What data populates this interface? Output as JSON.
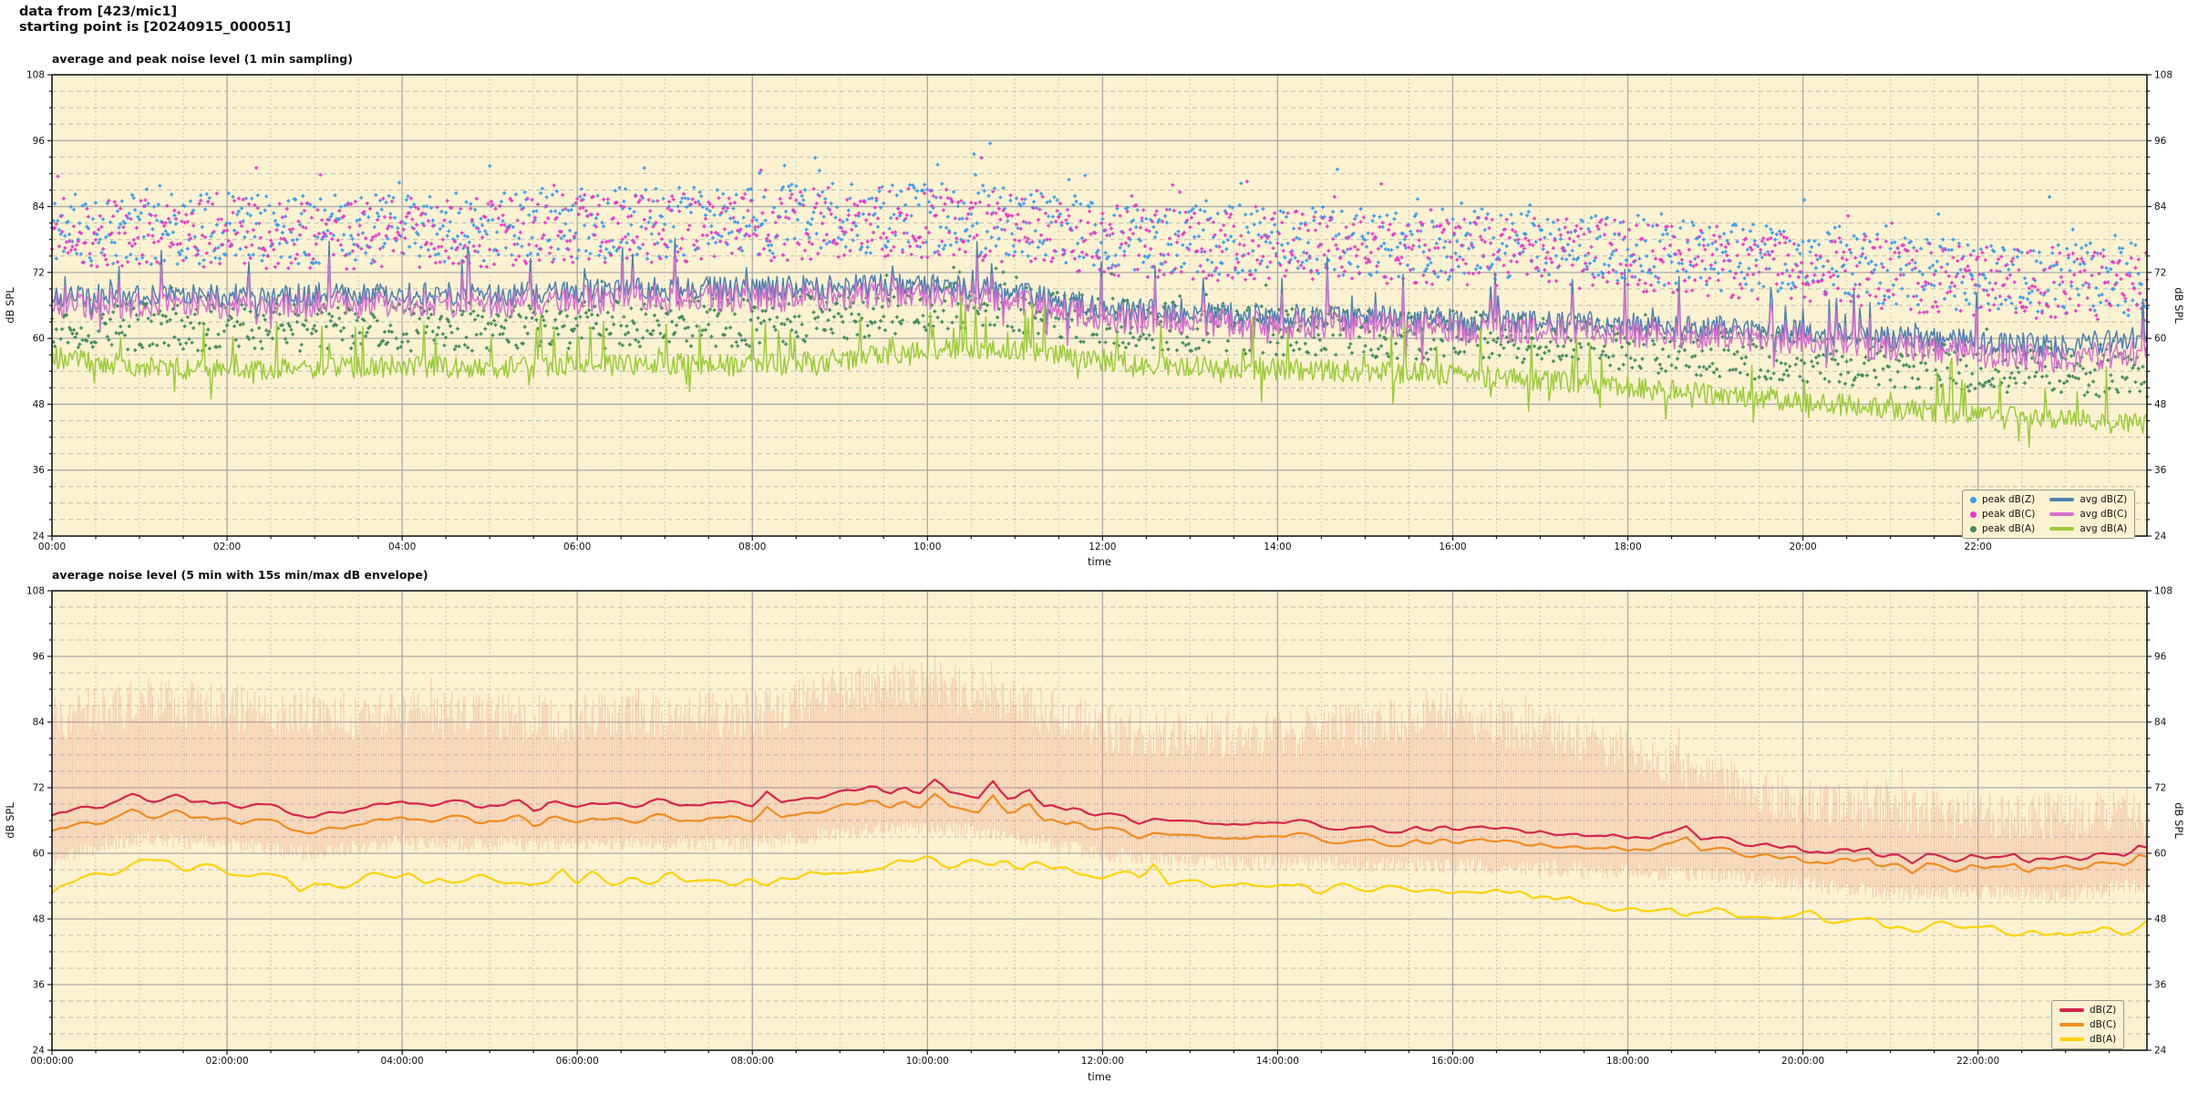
{
  "header": {
    "line1": "data from [423/mic1]",
    "line2": "starting point is [20240915_000051]"
  },
  "chart_data": [
    {
      "type": "line",
      "title": "average and peak noise level (1 min sampling)",
      "xlabel": "time",
      "ylabel": "dB SPL",
      "ylim": [
        24,
        108
      ],
      "yticks": [
        24,
        36,
        48,
        60,
        72,
        84,
        96,
        108
      ],
      "yminor_step": 3,
      "x_hours": 23.93,
      "xtick_every_h": 2,
      "xminor_every_h": 0.5,
      "xtick_labels": [
        "00:00",
        "02:00",
        "04:00",
        "06:00",
        "08:00",
        "10:00",
        "12:00",
        "14:00",
        "16:00",
        "18:00",
        "20:00",
        "22:00"
      ],
      "background": "#FBF2D2",
      "grid": true,
      "legend_position": "lower right",
      "series": [
        {
          "name": "peak dB(Z)",
          "kind": "scatter",
          "color": "#3D9BE9",
          "seed": 11,
          "points_per_hour": 60,
          "spread": 6.5,
          "tail_p": 0.06,
          "tail_amp": 9,
          "hourly_anchor_values": [
            80,
            80,
            80,
            80,
            80,
            80.5,
            81,
            81,
            81.5,
            82,
            82,
            81,
            79,
            78,
            78,
            77.5,
            77,
            76.5,
            76,
            75,
            74,
            72.5,
            71.5,
            71,
            70.5
          ]
        },
        {
          "name": "peak dB(C)",
          "kind": "scatter",
          "color": "#E53BC6",
          "seed": 12,
          "points_per_hour": 60,
          "spread": 6.5,
          "tail_p": 0.05,
          "tail_amp": 8,
          "hourly_anchor_values": [
            79,
            79,
            79,
            79,
            79,
            79.5,
            80,
            80,
            80.5,
            81,
            81,
            80,
            78,
            77,
            77,
            76.5,
            76,
            75.5,
            75,
            74,
            73,
            71.5,
            70.5,
            70,
            69.5
          ]
        },
        {
          "name": "peak dB(A)",
          "kind": "scatter",
          "color": "#41895C",
          "seed": 13,
          "points_per_hour": 60,
          "spread": 4.5,
          "tail_p": 0.05,
          "tail_amp": 6,
          "hourly_anchor_values": [
            63,
            62,
            62,
            62,
            62,
            62,
            62.5,
            63,
            63,
            64,
            66,
            65.5,
            63,
            62,
            61.5,
            61,
            60.5,
            60,
            58.5,
            57.5,
            56.5,
            55.5,
            54.5,
            54,
            53.5
          ]
        },
        {
          "name": "avg dB(Z)",
          "kind": "line",
          "color": "#4E80B0",
          "seed": 21,
          "points_per_hour": 60,
          "amp": 2.2,
          "spike_p": 0.07,
          "spike_amp": 8,
          "width": 1.5,
          "smooth": 0,
          "hourly_anchor_values": [
            67.5,
            68,
            68,
            68,
            68,
            68,
            68.5,
            69,
            69,
            69.5,
            70,
            68.5,
            65.5,
            64.5,
            64.2,
            63.8,
            63.4,
            63,
            62.5,
            62,
            61.2,
            60.2,
            59.3,
            58.6,
            60.5
          ]
        },
        {
          "name": "avg dB(C)",
          "kind": "line",
          "color": "#D670CE",
          "seed": 21,
          "points_per_hour": 60,
          "amp": 2.6,
          "spike_p": 0.07,
          "spike_amp": 7,
          "width": 1.5,
          "smooth": 0,
          "hourly_anchor_values": [
            66,
            66.3,
            66.2,
            66.2,
            66.2,
            66.2,
            66.8,
            67.2,
            67.2,
            67.8,
            68.2,
            66.8,
            63.8,
            62.8,
            62.6,
            62.2,
            61.8,
            61.4,
            61,
            60.4,
            59.6,
            58.4,
            57.2,
            56.2,
            57.8
          ]
        },
        {
          "name": "avg dB(A)",
          "kind": "line",
          "color": "#9CCB3B",
          "seed": 23,
          "points_per_hour": 60,
          "amp": 2.0,
          "spike_p": 0.08,
          "spike_amp": 7,
          "width": 1.5,
          "smooth": 0,
          "hourly_anchor_values": [
            56.5,
            55,
            54.2,
            54.5,
            55,
            54.6,
            55,
            55.4,
            55,
            56,
            58,
            58.2,
            56,
            55,
            54.4,
            54,
            53.4,
            52.4,
            51,
            49.8,
            48.4,
            47.2,
            46.2,
            45.2,
            44.2
          ]
        }
      ],
      "legend": [
        {
          "label": "peak dB(Z)",
          "marker": "dot",
          "color": "#3D9BE9"
        },
        {
          "label": "peak dB(C)",
          "marker": "dot",
          "color": "#E53BC6"
        },
        {
          "label": "peak dB(A)",
          "marker": "dot",
          "color": "#41895C"
        },
        {
          "label": "avg dB(Z)",
          "marker": "line",
          "color": "#4E80B0"
        },
        {
          "label": "avg dB(C)",
          "marker": "line",
          "color": "#D670CE"
        },
        {
          "label": "avg dB(A)",
          "marker": "line",
          "color": "#9CCB3B"
        }
      ]
    },
    {
      "type": "line",
      "title": "average noise level (5 min with 15s min/max dB envelope)",
      "xlabel": "time",
      "ylabel": "dB SPL",
      "ylim": [
        24,
        108
      ],
      "yticks": [
        24,
        36,
        48,
        60,
        72,
        84,
        96,
        108
      ],
      "yminor_step": 3,
      "x_hours": 23.93,
      "xtick_every_h": 2,
      "xminor_every_h": 0.5,
      "xtick_labels": [
        "00:00:00",
        "02:00:00",
        "04:00:00",
        "06:00:00",
        "08:00:00",
        "10:00:00",
        "12:00:00",
        "14:00:00",
        "16:00:00",
        "18:00:00",
        "20:00:00",
        "22:00:00"
      ],
      "background": "#FBF2D2",
      "grid": true,
      "legend_position": "lower right",
      "series": [
        {
          "name": "min/max envelope",
          "kind": "envelope",
          "color": "rgba(230,126,105,0.32)",
          "seed": 41,
          "points_per_hour": 60,
          "width": 1.1,
          "hourly_anchor_values_max": [
            86,
            89,
            88,
            86.5,
            86.5,
            86,
            86,
            87,
            87,
            91,
            92.5,
            89,
            84,
            83,
            83,
            85,
            86.5,
            84,
            80,
            75,
            70.5,
            69.5,
            68.5,
            68,
            69
          ],
          "hourly_anchor_values_min": [
            59,
            63,
            61.4,
            60,
            62,
            61.7,
            61.7,
            62.1,
            61.7,
            63.9,
            64.9,
            62.9,
            59.9,
            58.5,
            58.4,
            58.1,
            57.7,
            57.2,
            56.7,
            55.9,
            54.4,
            52.5,
            52.9,
            52.4,
            54.4
          ]
        },
        {
          "name": "dB(Z)",
          "kind": "line",
          "color": "#D6244C",
          "seed": 31,
          "points_per_hour": 12,
          "amp": 1.3,
          "spike_p": 0.05,
          "spike_amp": 4,
          "width": 2.2,
          "smooth": 1,
          "hourly_anchor_values": [
            66.5,
            70.5,
            68.8,
            67.2,
            69.4,
            69,
            69,
            69.4,
            69,
            71,
            72,
            70,
            67,
            65.6,
            65.4,
            65,
            64.6,
            64,
            63.4,
            62.4,
            60.8,
            58.8,
            59.2,
            58.6,
            60.6
          ]
        },
        {
          "name": "dB(C)",
          "kind": "line",
          "color": "#F28C1E",
          "seed": 31,
          "points_per_hour": 12,
          "amp": 1.4,
          "spike_p": 0.05,
          "spike_amp": 4,
          "width": 2.2,
          "smooth": 1,
          "hourly_anchor_values": [
            63.6,
            67.6,
            65.9,
            64.4,
            66.5,
            66.2,
            66.2,
            66.6,
            66.2,
            68.4,
            69.4,
            67.4,
            64.4,
            63,
            62.9,
            62.6,
            62.2,
            61.7,
            61.2,
            60.4,
            58.9,
            57,
            57.4,
            56.9,
            58.9
          ]
        },
        {
          "name": "dB(A)",
          "kind": "line",
          "color": "#FFD300",
          "seed": 33,
          "points_per_hour": 12,
          "amp": 1.4,
          "spike_p": 0.05,
          "spike_amp": 4,
          "width": 2.2,
          "smooth": 1,
          "hourly_anchor_values": [
            52.6,
            58.6,
            56.4,
            54,
            55.4,
            55,
            54.6,
            55,
            54.6,
            56.6,
            58.6,
            58,
            56,
            55,
            53.8,
            53.4,
            53,
            52,
            50.2,
            49,
            48.4,
            47,
            46.4,
            45.2,
            46.6
          ]
        }
      ],
      "legend": [
        {
          "label": "dB(Z)",
          "marker": "line",
          "color": "#D6244C"
        },
        {
          "label": "dB(C)",
          "marker": "line",
          "color": "#F28C1E"
        },
        {
          "label": "dB(A)",
          "marker": "line",
          "color": "#FFD300"
        }
      ]
    }
  ],
  "style_colors": {
    "plot_background": "#FBF2D2",
    "major_grid": "#A9A9A9",
    "minor_grid": "#BDBDB4",
    "frame": "#1a1a1a",
    "text": "#111111"
  }
}
